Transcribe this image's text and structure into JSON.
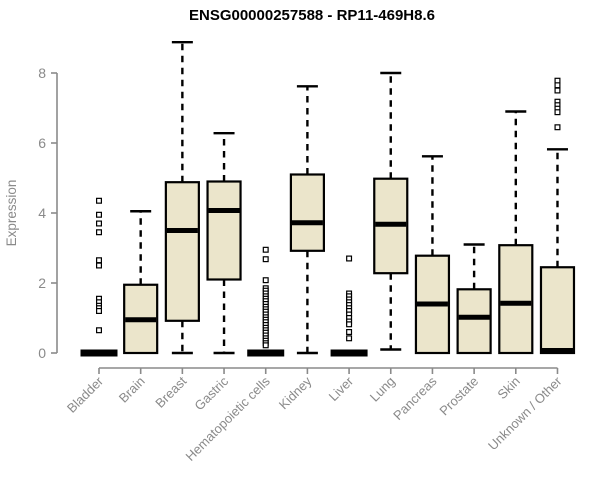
{
  "title": "ENSG00000257588 - RP11-469H8.6",
  "chart_data": {
    "type": "boxplot",
    "title": "ENSG00000257588 - RP11-469H8.6",
    "xlabel": "",
    "ylabel": "Expression",
    "ylim": [
      0,
      8.9
    ],
    "yticks": [
      0,
      2,
      4,
      6,
      8
    ],
    "grid": false,
    "legend": "none",
    "categories": [
      "Bladder",
      "Brain",
      "Breast",
      "Gastric",
      "Hematopoietic cells",
      "Kidney",
      "Liver",
      "Lung",
      "Pancreas",
      "Prostate",
      "Skin",
      "Unknown / Other"
    ],
    "series": [
      {
        "category": "Bladder",
        "low": 0,
        "q1": 0,
        "median": 0,
        "q3": 0,
        "high": 0,
        "collapsed": true,
        "outliers": [
          4.35,
          3.95,
          3.7,
          3.45,
          2.65,
          2.5,
          1.55,
          1.45,
          1.35,
          1.28,
          1.2,
          0.65
        ]
      },
      {
        "category": "Brain",
        "low": 0,
        "q1": 0,
        "median": 0.95,
        "q3": 1.95,
        "high": 4.05,
        "collapsed": false,
        "outliers": []
      },
      {
        "category": "Breast",
        "low": 0,
        "q1": 0.92,
        "median": 3.5,
        "q3": 4.88,
        "high": 8.88,
        "collapsed": false,
        "outliers": []
      },
      {
        "category": "Gastric",
        "low": 0,
        "q1": 2.1,
        "median": 4.07,
        "q3": 4.9,
        "high": 6.28,
        "collapsed": false,
        "outliers": []
      },
      {
        "category": "Hematopoietic cells",
        "low": 0,
        "q1": 0,
        "median": 0,
        "q3": 0,
        "high": 0,
        "collapsed": true,
        "outliers": [
          2.95,
          2.68,
          2.08,
          1.85,
          1.78,
          1.7,
          1.62,
          1.55,
          1.48,
          1.4,
          1.32,
          1.25,
          1.18,
          1.1,
          1.02,
          0.95,
          0.88,
          0.8,
          0.72,
          0.65,
          0.58,
          0.5,
          0.42,
          0.35,
          0.28,
          0.22
        ]
      },
      {
        "category": "Kidney",
        "low": 0,
        "q1": 2.92,
        "median": 3.72,
        "q3": 5.1,
        "high": 7.62,
        "collapsed": false,
        "outliers": []
      },
      {
        "category": "Liver",
        "low": 0,
        "q1": 0,
        "median": 0,
        "q3": 0,
        "high": 0,
        "collapsed": true,
        "outliers": [
          2.7,
          1.7,
          1.62,
          1.53,
          1.45,
          1.37,
          1.28,
          1.2,
          1.1,
          1.0,
          0.9,
          0.82,
          0.6,
          0.42
        ]
      },
      {
        "category": "Lung",
        "low": 0.1,
        "q1": 2.28,
        "median": 3.68,
        "q3": 4.98,
        "high": 8.0,
        "collapsed": false,
        "outliers": []
      },
      {
        "category": "Pancreas",
        "low": 0,
        "q1": 0,
        "median": 1.4,
        "q3": 2.78,
        "high": 5.62,
        "collapsed": false,
        "outliers": []
      },
      {
        "category": "Prostate",
        "low": 0,
        "q1": 0,
        "median": 1.02,
        "q3": 1.82,
        "high": 3.1,
        "collapsed": false,
        "outliers": []
      },
      {
        "category": "Skin",
        "low": 0,
        "q1": 0,
        "median": 1.42,
        "q3": 3.08,
        "high": 6.9,
        "collapsed": false,
        "outliers": []
      },
      {
        "category": "Unknown / Other",
        "low": 0,
        "q1": 0,
        "median": 0.07,
        "q3": 2.45,
        "high": 5.82,
        "collapsed": false,
        "outliers": [
          7.78,
          7.65,
          7.5,
          7.18,
          7.08,
          6.98,
          6.88,
          6.45
        ]
      }
    ],
    "colors": {
      "box_fill": "#ebe5cb",
      "box_stroke": "#000000",
      "median": "#000000",
      "whisker": "#000000",
      "outlier_stroke": "#000000",
      "outlier_fill": "#ffffff",
      "axis": "#8a8a8a",
      "tick_label": "#8a8a8a",
      "title": "#000000",
      "background": "#ffffff"
    }
  }
}
